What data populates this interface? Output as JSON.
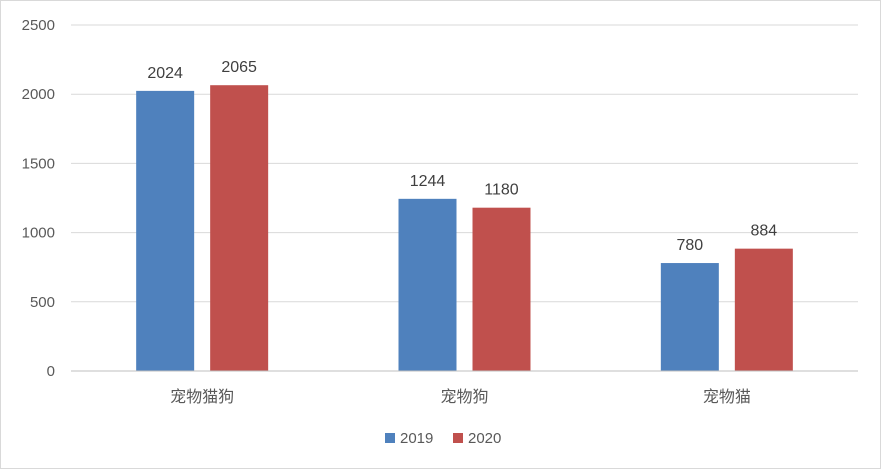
{
  "chart_data": {
    "type": "bar",
    "title": "",
    "xlabel": "",
    "ylabel": "",
    "categories": [
      "宠物猫狗",
      "宠物狗",
      "宠物猫"
    ],
    "series": [
      {
        "name": "2019",
        "color": "#4f81bd",
        "values": [
          2024,
          1244,
          780
        ]
      },
      {
        "name": "2020",
        "color": "#c0504d",
        "values": [
          2065,
          1180,
          884
        ]
      }
    ],
    "ylim": [
      0,
      2500
    ],
    "yticks": [
      0,
      500,
      1000,
      1500,
      2000,
      2500
    ],
    "grid": true,
    "legend": "bottom",
    "data_labels": true
  }
}
